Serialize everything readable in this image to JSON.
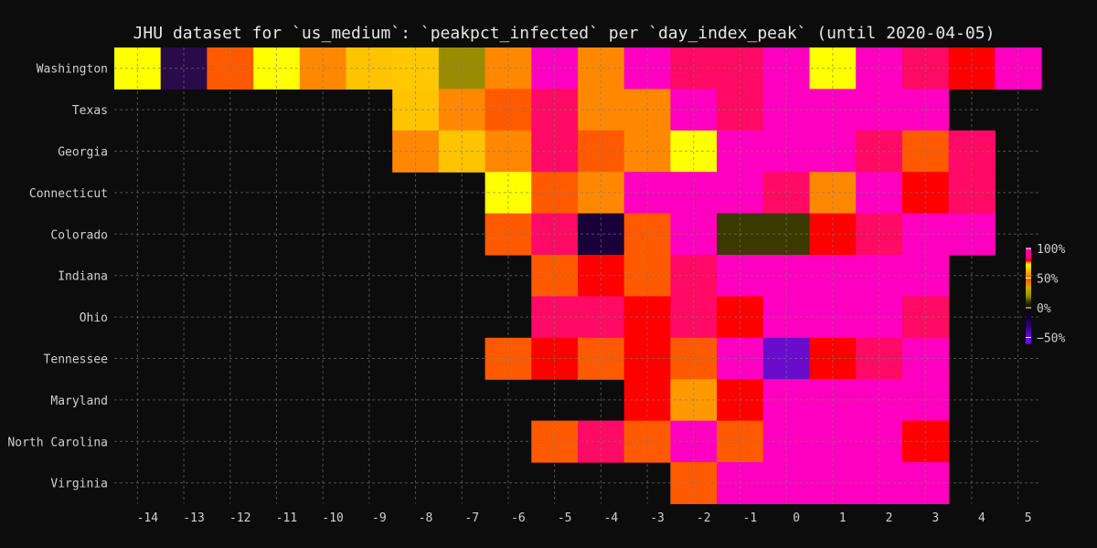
{
  "chart_data": {
    "type": "heatmap",
    "title": "JHU dataset for `us_medium`: `peakpct_infected` per `day_index_peak` (until 2020-04-05)",
    "xlabel": "",
    "ylabel": "",
    "x": [
      -14,
      -13,
      -12,
      -11,
      -10,
      -9,
      -8,
      -7,
      -6,
      -5,
      -4,
      -3,
      -2,
      -1,
      0,
      1,
      2,
      3,
      4,
      5
    ],
    "rows": [
      "Washington",
      "Texas",
      "Georgia",
      "Connecticut",
      "Colorado",
      "Indiana",
      "Ohio",
      "Tennessee",
      "Maryland",
      "North Carolina",
      "Virginia"
    ],
    "values": [
      [
        75,
        -40,
        48,
        75,
        55,
        65,
        68,
        20,
        55,
        90,
        55,
        90,
        95,
        95,
        90,
        75,
        90,
        95,
        80,
        90
      ],
      [
        null,
        null,
        null,
        null,
        null,
        null,
        65,
        55,
        48,
        95,
        55,
        55,
        90,
        95,
        90,
        90,
        90,
        90,
        null,
        null
      ],
      [
        null,
        null,
        null,
        null,
        null,
        null,
        55,
        65,
        55,
        95,
        48,
        55,
        75,
        90,
        90,
        90,
        95,
        48,
        95,
        null
      ],
      [
        null,
        null,
        null,
        null,
        null,
        null,
        null,
        null,
        75,
        48,
        55,
        90,
        90,
        90,
        95,
        55,
        90,
        80,
        95,
        null
      ],
      [
        null,
        null,
        null,
        null,
        null,
        null,
        null,
        null,
        48,
        95,
        -20,
        48,
        90,
        10,
        10,
        80,
        95,
        90,
        90,
        null
      ],
      [
        null,
        null,
        null,
        null,
        null,
        null,
        null,
        null,
        null,
        48,
        80,
        48,
        95,
        90,
        90,
        90,
        90,
        90,
        null,
        null
      ],
      [
        null,
        null,
        null,
        null,
        null,
        null,
        null,
        null,
        null,
        95,
        95,
        80,
        95,
        80,
        90,
        90,
        90,
        95,
        null,
        null
      ],
      [
        null,
        null,
        null,
        null,
        null,
        null,
        null,
        null,
        48,
        80,
        48,
        80,
        48,
        90,
        -45,
        80,
        95,
        90,
        null,
        null
      ],
      [
        null,
        null,
        null,
        null,
        null,
        null,
        null,
        null,
        null,
        null,
        null,
        80,
        58,
        80,
        90,
        90,
        90,
        90,
        null,
        null
      ],
      [
        null,
        null,
        null,
        null,
        null,
        null,
        null,
        null,
        null,
        48,
        95,
        48,
        90,
        48,
        90,
        90,
        90,
        80,
        null,
        null
      ],
      [
        null,
        null,
        null,
        null,
        null,
        null,
        null,
        null,
        null,
        null,
        null,
        null,
        48,
        90,
        90,
        90,
        90,
        90,
        null,
        null
      ]
    ],
    "colorbar": {
      "min": -60,
      "max": 100,
      "ticks": [
        {
          "value": 100,
          "label": "100%"
        },
        {
          "value": 50,
          "label": "50%"
        },
        {
          "value": 0,
          "label": "0%"
        },
        {
          "value": -50,
          "label": "−50%"
        }
      ]
    },
    "grid": true
  }
}
